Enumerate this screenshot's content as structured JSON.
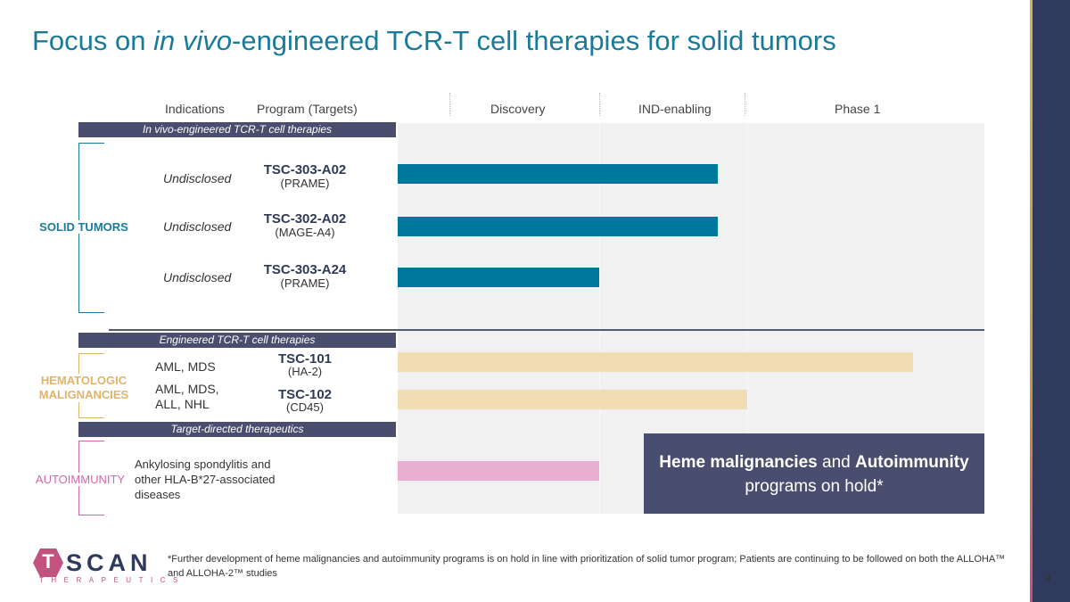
{
  "title": {
    "prefix": "Focus on ",
    "italic": "in vivo",
    "suffix": "-engineered TCR-T cell therapies for solid tumors"
  },
  "headers": {
    "indications": "Indications",
    "program": "Program (Targets)",
    "discovery": "Discovery",
    "ind_enabling": "IND-enabling",
    "phase1": "Phase 1"
  },
  "sections": {
    "in_vivo": "In vivo-engineered TCR-T cell therapies",
    "engineered": "Engineered TCR-T cell therapies",
    "target_directed": "Target-directed therapeutics"
  },
  "groups": {
    "solid_tumors": "SOLID TUMORS",
    "hematologic_line1": "HEMATOLOGIC",
    "hematologic_line2": "MALIGNANCIES",
    "autoimmunity": "AUTOIMMUNITY"
  },
  "colors": {
    "solid_bar": "#00789d",
    "heme_bar": "#f2dcb3",
    "auto_bar": "#e9b0d2",
    "solid_label": "#1b7a99",
    "heme_label": "#e0b56a",
    "auto_label": "#d566a8"
  },
  "chart_data": {
    "type": "bar",
    "orientation": "horizontal",
    "stages": [
      "Discovery",
      "IND-enabling",
      "Phase 1"
    ],
    "xlim": [
      0,
      3
    ],
    "programs": [
      {
        "indication": "Undisclosed",
        "name": "TSC-303-A02",
        "target": "(PRAME)",
        "group": "solid",
        "progress": 1.8
      },
      {
        "indication": "Undisclosed",
        "name": "TSC-302-A02",
        "target": "(MAGE-A4)",
        "group": "solid",
        "progress": 1.8
      },
      {
        "indication": "Undisclosed",
        "name": "TSC-303-A24",
        "target": "(PRAME)",
        "group": "solid",
        "progress": 1.0
      },
      {
        "indication": "AML, MDS",
        "name": "TSC-101",
        "target": "(HA-2)",
        "group": "heme",
        "progress": 2.7
      },
      {
        "indication_line1": "AML, MDS,",
        "indication_line2": "ALL, NHL",
        "name": "TSC-102",
        "target": "(CD45)",
        "group": "heme",
        "progress": 2.0
      },
      {
        "indication_line1": "Ankylosing spondylitis and",
        "indication_line2": "other HLA-B*27-associated",
        "indication_line3": "diseases",
        "group": "auto",
        "progress": 1.0
      }
    ]
  },
  "hold_box": {
    "bold1": "Heme malignancies",
    "mid": " and ",
    "bold2": "Autoimmunity",
    "line2": "programs on hold*"
  },
  "footnote": "*Further development of heme malignancies and autoimmunity programs is on hold in line with prioritization of solid tumor program; Patients are continuing to be followed on both the ALLOHA™ and ALLOHA-2™ studies",
  "logo": {
    "letter_t": "T",
    "name": "SCAN",
    "sub": "THERAPEUTICS"
  },
  "page_number": "4"
}
